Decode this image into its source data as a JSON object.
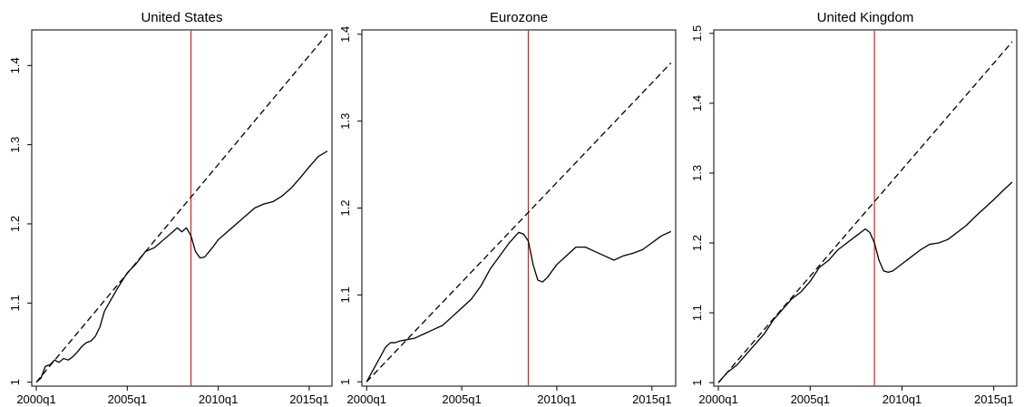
{
  "chart_data": [
    {
      "type": "line",
      "title": "United States",
      "xlabel": "",
      "ylabel": "",
      "xlim": [
        1999.75,
        2016.25
      ],
      "ylim": [
        0.995,
        1.445
      ],
      "xticks": [
        2000,
        2005,
        2010,
        2015
      ],
      "xtick_labels": [
        "2000q1",
        "2005q1",
        "2010q1",
        "2015q1"
      ],
      "yticks": [
        1,
        1.1,
        1.2,
        1.3,
        1.4
      ],
      "ytick_labels": [
        "1",
        "1.1",
        "1.2",
        "1.3",
        "1.4"
      ],
      "vline": {
        "x": 2008.5,
        "color": "#e02020"
      },
      "grid": false,
      "series": [
        {
          "style": "solid",
          "color": "#000000",
          "x": [
            2000.0,
            2000.25,
            2000.5,
            2000.75,
            2001.0,
            2001.25,
            2001.5,
            2001.75,
            2002.0,
            2002.25,
            2002.5,
            2002.75,
            2003.0,
            2003.25,
            2003.5,
            2003.75,
            2004.0,
            2004.5,
            2005.0,
            2005.5,
            2006.0,
            2006.5,
            2007.0,
            2007.5,
            2007.75,
            2008.0,
            2008.25,
            2008.5,
            2008.75,
            2009.0,
            2009.25,
            2009.5,
            2009.75,
            2010.0,
            2010.5,
            2011.0,
            2011.5,
            2012.0,
            2012.5,
            2013.0,
            2013.5,
            2014.0,
            2014.5,
            2015.0,
            2015.5,
            2016.0
          ],
          "y": [
            1.0,
            1.005,
            1.02,
            1.022,
            1.028,
            1.025,
            1.03,
            1.028,
            1.032,
            1.038,
            1.045,
            1.05,
            1.052,
            1.058,
            1.07,
            1.09,
            1.1,
            1.12,
            1.138,
            1.15,
            1.165,
            1.17,
            1.18,
            1.19,
            1.195,
            1.19,
            1.195,
            1.185,
            1.165,
            1.157,
            1.158,
            1.165,
            1.172,
            1.18,
            1.19,
            1.2,
            1.21,
            1.22,
            1.225,
            1.228,
            1.235,
            1.245,
            1.258,
            1.272,
            1.285,
            1.292
          ]
        },
        {
          "style": "dashed",
          "color": "#000000",
          "x": [
            2000.0,
            2016.0
          ],
          "y": [
            1.0,
            1.44
          ]
        }
      ]
    },
    {
      "type": "line",
      "title": "Eurozone",
      "xlabel": "",
      "ylabel": "",
      "xlim": [
        1999.75,
        2016.25
      ],
      "ylim": [
        0.995,
        1.405
      ],
      "xticks": [
        2000,
        2005,
        2010,
        2015
      ],
      "xtick_labels": [
        "2000q1",
        "2005q1",
        "2010q1",
        "2015q1"
      ],
      "yticks": [
        1,
        1.1,
        1.2,
        1.3,
        1.4
      ],
      "ytick_labels": [
        "1",
        "1.1",
        "1.2",
        "1.3",
        "1.4"
      ],
      "vline": {
        "x": 2008.5,
        "color": "#e02020"
      },
      "grid": false,
      "series": [
        {
          "style": "solid",
          "color": "#000000",
          "x": [
            2000.0,
            2000.25,
            2000.5,
            2000.75,
            2001.0,
            2001.25,
            2001.5,
            2001.75,
            2002.0,
            2002.5,
            2003.0,
            2003.5,
            2004.0,
            2004.5,
            2005.0,
            2005.5,
            2006.0,
            2006.5,
            2007.0,
            2007.5,
            2008.0,
            2008.25,
            2008.5,
            2008.75,
            2009.0,
            2009.25,
            2009.5,
            2010.0,
            2010.5,
            2011.0,
            2011.5,
            2012.0,
            2012.5,
            2013.0,
            2013.5,
            2014.0,
            2014.5,
            2015.0,
            2015.5,
            2016.0
          ],
          "y": [
            1.0,
            1.01,
            1.02,
            1.03,
            1.04,
            1.045,
            1.045,
            1.047,
            1.048,
            1.05,
            1.055,
            1.06,
            1.065,
            1.075,
            1.085,
            1.095,
            1.11,
            1.13,
            1.145,
            1.16,
            1.172,
            1.17,
            1.162,
            1.135,
            1.117,
            1.115,
            1.12,
            1.135,
            1.145,
            1.155,
            1.155,
            1.15,
            1.145,
            1.14,
            1.145,
            1.148,
            1.152,
            1.16,
            1.168,
            1.173
          ]
        },
        {
          "style": "dashed",
          "color": "#000000",
          "x": [
            2000.0,
            2016.0
          ],
          "y": [
            1.0,
            1.367
          ]
        }
      ]
    },
    {
      "type": "line",
      "title": "United Kingdom",
      "xlabel": "",
      "ylabel": "",
      "xlim": [
        1999.75,
        2016.25
      ],
      "ylim": [
        0.995,
        1.505
      ],
      "xticks": [
        2000,
        2005,
        2010,
        2015
      ],
      "xtick_labels": [
        "2000q1",
        "2005q1",
        "2010q1",
        "2015q1"
      ],
      "yticks": [
        1,
        1.1,
        1.2,
        1.3,
        1.4,
        1.5
      ],
      "ytick_labels": [
        "1",
        "1.1",
        "1.2",
        "1.3",
        "1.4",
        "1.5"
      ],
      "vline": {
        "x": 2008.5,
        "color": "#e02020"
      },
      "grid": false,
      "series": [
        {
          "style": "solid",
          "color": "#000000",
          "x": [
            2000.0,
            2000.5,
            2001.0,
            2001.5,
            2002.0,
            2002.5,
            2003.0,
            2003.5,
            2004.0,
            2004.5,
            2005.0,
            2005.5,
            2006.0,
            2006.5,
            2007.0,
            2007.5,
            2008.0,
            2008.25,
            2008.5,
            2008.75,
            2009.0,
            2009.25,
            2009.5,
            2009.75,
            2010.0,
            2010.5,
            2011.0,
            2011.5,
            2012.0,
            2012.5,
            2013.0,
            2013.5,
            2014.0,
            2014.5,
            2015.0,
            2015.5,
            2016.0
          ],
          "y": [
            1.0,
            1.015,
            1.025,
            1.04,
            1.055,
            1.07,
            1.09,
            1.105,
            1.12,
            1.13,
            1.145,
            1.165,
            1.175,
            1.19,
            1.2,
            1.21,
            1.22,
            1.215,
            1.2,
            1.175,
            1.16,
            1.158,
            1.16,
            1.165,
            1.17,
            1.18,
            1.19,
            1.198,
            1.2,
            1.205,
            1.215,
            1.225,
            1.238,
            1.25,
            1.262,
            1.275,
            1.287
          ]
        },
        {
          "style": "dashed",
          "color": "#000000",
          "x": [
            2000.0,
            2016.0
          ],
          "y": [
            1.0,
            1.488
          ]
        }
      ]
    }
  ]
}
